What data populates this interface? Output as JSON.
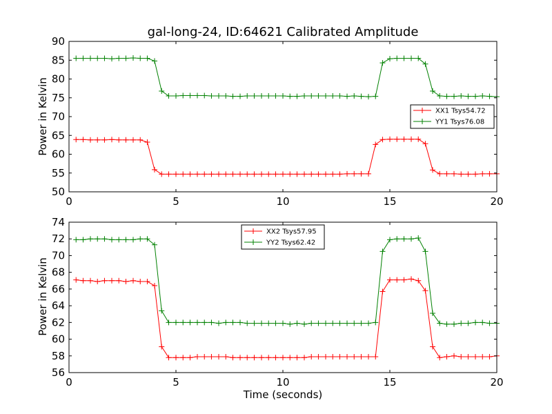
{
  "chart_data": [
    {
      "type": "line",
      "title": "gal-long-24, ID:64621 Calibrated Amplitude",
      "xlabel": "",
      "ylabel": "Power in Kelvin",
      "xlim": [
        0,
        20
      ],
      "ylim": [
        50,
        90
      ],
      "x_ticks": [
        0,
        5,
        10,
        15,
        20
      ],
      "y_ticks": [
        50,
        55,
        60,
        65,
        70,
        75,
        80,
        85,
        90
      ],
      "grid": false,
      "legend_position": "right",
      "x": [
        0.33,
        0.66,
        1.0,
        1.33,
        1.66,
        2.0,
        2.33,
        2.66,
        3.0,
        3.33,
        3.66,
        4.0,
        4.33,
        4.66,
        5.0,
        5.33,
        5.66,
        6.0,
        6.33,
        6.66,
        7.0,
        7.33,
        7.66,
        8.0,
        8.33,
        8.66,
        9.0,
        9.33,
        9.66,
        10.0,
        10.33,
        10.66,
        11.0,
        11.33,
        11.66,
        12.0,
        12.33,
        12.66,
        13.0,
        13.33,
        13.66,
        14.0,
        14.33,
        14.66,
        15.0,
        15.33,
        15.66,
        16.0,
        16.33,
        16.66,
        17.0,
        17.33,
        17.66,
        18.0,
        18.33,
        18.66,
        19.0,
        19.33,
        19.66,
        20.0
      ],
      "series": [
        {
          "name": "XX1 Tsys54.72",
          "color": "#ff0000",
          "values": [
            63.9,
            63.9,
            63.8,
            63.8,
            63.8,
            63.9,
            63.8,
            63.8,
            63.8,
            63.8,
            63.2,
            55.9,
            54.7,
            54.7,
            54.7,
            54.7,
            54.7,
            54.7,
            54.7,
            54.7,
            54.7,
            54.7,
            54.7,
            54.7,
            54.7,
            54.7,
            54.7,
            54.7,
            54.7,
            54.7,
            54.7,
            54.7,
            54.7,
            54.7,
            54.7,
            54.7,
            54.7,
            54.7,
            54.8,
            54.8,
            54.8,
            54.8,
            62.6,
            63.9,
            64.0,
            64.0,
            64.0,
            64.0,
            64.0,
            62.8,
            55.8,
            54.8,
            54.8,
            54.8,
            54.7,
            54.7,
            54.7,
            54.8,
            54.8,
            54.8
          ]
        },
        {
          "name": "YY1 Tsys76.08",
          "color": "#008000",
          "values": [
            85.5,
            85.5,
            85.5,
            85.5,
            85.5,
            85.4,
            85.5,
            85.5,
            85.6,
            85.5,
            85.5,
            84.8,
            76.8,
            75.5,
            75.5,
            75.6,
            75.6,
            75.6,
            75.6,
            75.5,
            75.5,
            75.5,
            75.4,
            75.4,
            75.5,
            75.5,
            75.5,
            75.5,
            75.5,
            75.5,
            75.4,
            75.4,
            75.5,
            75.5,
            75.5,
            75.5,
            75.5,
            75.5,
            75.4,
            75.5,
            75.4,
            75.3,
            75.4,
            84.3,
            85.4,
            85.5,
            85.5,
            85.5,
            85.5,
            84.0,
            76.8,
            75.5,
            75.4,
            75.4,
            75.5,
            75.4,
            75.4,
            75.5,
            75.4,
            75.3
          ]
        }
      ]
    },
    {
      "type": "line",
      "title": "",
      "xlabel": "Time (seconds)",
      "ylabel": "Power in Kelvin",
      "xlim": [
        0,
        20
      ],
      "ylim": [
        56,
        74
      ],
      "x_ticks": [
        0,
        5,
        10,
        15,
        20
      ],
      "y_ticks": [
        56,
        58,
        60,
        62,
        64,
        66,
        68,
        70,
        72,
        74
      ],
      "grid": false,
      "legend_position": "top-center",
      "x": [
        0.33,
        0.66,
        1.0,
        1.33,
        1.66,
        2.0,
        2.33,
        2.66,
        3.0,
        3.33,
        3.66,
        4.0,
        4.33,
        4.66,
        5.0,
        5.33,
        5.66,
        6.0,
        6.33,
        6.66,
        7.0,
        7.33,
        7.66,
        8.0,
        8.33,
        8.66,
        9.0,
        9.33,
        9.66,
        10.0,
        10.33,
        10.66,
        11.0,
        11.33,
        11.66,
        12.0,
        12.33,
        12.66,
        13.0,
        13.33,
        13.66,
        14.0,
        14.33,
        14.66,
        15.0,
        15.33,
        15.66,
        16.0,
        16.33,
        16.66,
        17.0,
        17.33,
        17.66,
        18.0,
        18.33,
        18.66,
        19.0,
        19.33,
        19.66,
        20.0
      ],
      "series": [
        {
          "name": "XX2 Tsys57.95",
          "color": "#ff0000",
          "values": [
            67.1,
            67.0,
            67.0,
            66.9,
            67.0,
            67.0,
            67.0,
            66.9,
            67.0,
            66.9,
            66.9,
            66.4,
            59.1,
            57.8,
            57.8,
            57.8,
            57.8,
            57.9,
            57.9,
            57.9,
            57.9,
            57.9,
            57.8,
            57.8,
            57.8,
            57.8,
            57.8,
            57.8,
            57.8,
            57.8,
            57.8,
            57.8,
            57.8,
            57.9,
            57.9,
            57.9,
            57.9,
            57.9,
            57.9,
            57.9,
            57.9,
            57.9,
            57.9,
            65.7,
            67.1,
            67.1,
            67.1,
            67.2,
            67.0,
            65.8,
            59.1,
            57.8,
            57.9,
            58.0,
            57.9,
            57.9,
            57.9,
            57.9,
            57.9,
            58.0
          ]
        },
        {
          "name": "YY2 Tsys62.42",
          "color": "#008000",
          "values": [
            71.9,
            71.9,
            72.0,
            72.0,
            72.0,
            71.9,
            71.9,
            71.9,
            71.9,
            72.0,
            72.0,
            71.3,
            63.4,
            62.0,
            62.0,
            62.0,
            62.0,
            62.0,
            62.0,
            62.0,
            61.9,
            62.0,
            62.0,
            62.0,
            61.9,
            61.9,
            61.9,
            61.9,
            61.9,
            61.9,
            61.8,
            61.9,
            61.8,
            61.9,
            61.9,
            61.9,
            61.9,
            61.9,
            61.9,
            61.9,
            61.9,
            61.9,
            62.0,
            70.5,
            71.9,
            72.0,
            72.0,
            72.0,
            72.1,
            70.5,
            63.1,
            61.9,
            61.8,
            61.8,
            61.9,
            61.9,
            62.0,
            62.0,
            61.9,
            61.9
          ]
        }
      ]
    }
  ]
}
